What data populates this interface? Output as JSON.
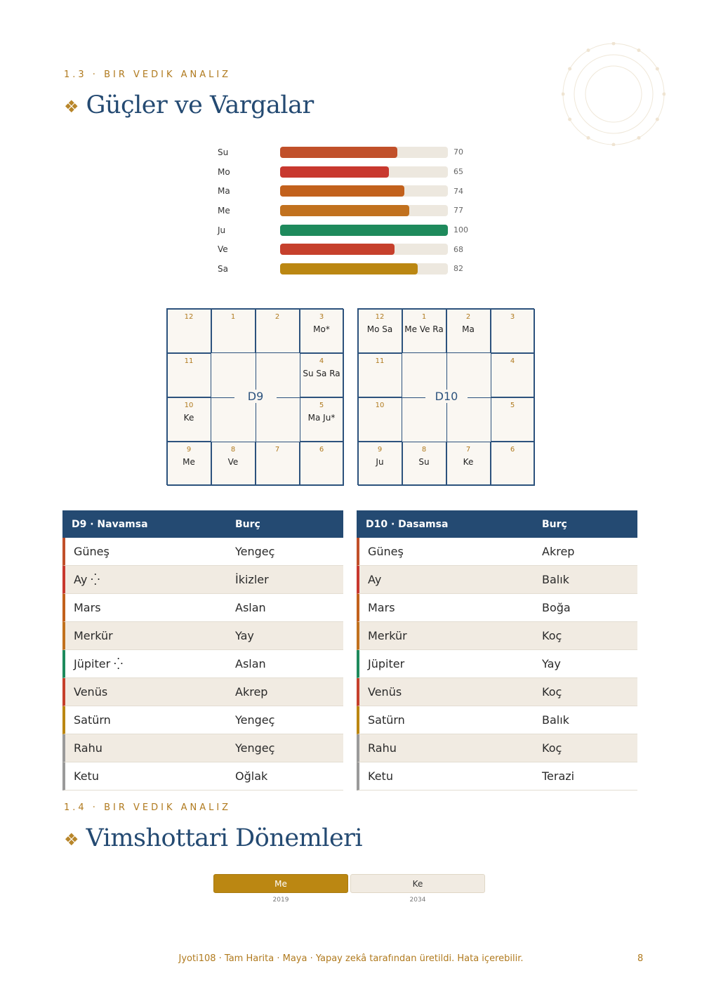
{
  "section1": {
    "label": "1.3 · BIR VEDIK ANALIZ",
    "title": "Güçler ve Vargalar"
  },
  "strengths": [
    {
      "planet": "Su",
      "value": 70,
      "color": "#c1502a"
    },
    {
      "planet": "Mo",
      "value": 65,
      "color": "#c8382e"
    },
    {
      "planet": "Ma",
      "value": 74,
      "color": "#c2611c"
    },
    {
      "planet": "Me",
      "value": 77,
      "color": "#c1711e"
    },
    {
      "planet": "Ju",
      "value": 100,
      "color": "#1e8a5c"
    },
    {
      "planet": "Ve",
      "value": 68,
      "color": "#c6402c"
    },
    {
      "planet": "Sa",
      "value": 82,
      "color": "#bb8712"
    }
  ],
  "charts": [
    {
      "name": "D9",
      "houses": {
        "12": "",
        "1": "",
        "2": "",
        "3": "Mo*",
        "11": "",
        "4": "Su Sa Ra",
        "10": "Ke",
        "5": "Ma Ju*",
        "9": "Me",
        "8": "Ve",
        "7": "",
        "6": ""
      }
    },
    {
      "name": "D10",
      "houses": {
        "12": "Mo Sa",
        "1": "Me Ve Ra",
        "2": "Ma",
        "3": "",
        "11": "",
        "4": "",
        "10": "",
        "5": "",
        "9": "Ju",
        "8": "Su",
        "7": "Ke",
        "6": ""
      }
    }
  ],
  "tables": [
    {
      "col1": "D9 · Navamsa",
      "col2": "Burç",
      "rows": [
        {
          "planet": "Güneş",
          "sign": "Yengeç",
          "color": "#c1502a"
        },
        {
          "planet": "Ay ⁛",
          "sign": "İkizler",
          "color": "#c8382e"
        },
        {
          "planet": "Mars",
          "sign": "Aslan",
          "color": "#c2611c"
        },
        {
          "planet": "Merkür",
          "sign": "Yay",
          "color": "#c1711e"
        },
        {
          "planet": "Jüpiter ⁛",
          "sign": "Aslan",
          "color": "#1e8a5c"
        },
        {
          "planet": "Venüs",
          "sign": "Akrep",
          "color": "#c6402c"
        },
        {
          "planet": "Satürn",
          "sign": "Yengeç",
          "color": "#bb8712"
        },
        {
          "planet": "Rahu",
          "sign": "Yengeç",
          "color": "#9a9a9a"
        },
        {
          "planet": "Ketu",
          "sign": "Oğlak",
          "color": "#9a9a9a"
        }
      ]
    },
    {
      "col1": "D10 · Dasamsa",
      "col2": "Burç",
      "rows": [
        {
          "planet": "Güneş",
          "sign": "Akrep",
          "color": "#c1502a"
        },
        {
          "planet": "Ay",
          "sign": "Balık",
          "color": "#c8382e"
        },
        {
          "planet": "Mars",
          "sign": "Boğa",
          "color": "#c2611c"
        },
        {
          "planet": "Merkür",
          "sign": "Koç",
          "color": "#c1711e"
        },
        {
          "planet": "Jüpiter",
          "sign": "Yay",
          "color": "#1e8a5c"
        },
        {
          "planet": "Venüs",
          "sign": "Koç",
          "color": "#c6402c"
        },
        {
          "planet": "Satürn",
          "sign": "Balık",
          "color": "#bb8712"
        },
        {
          "planet": "Rahu",
          "sign": "Koç",
          "color": "#9a9a9a"
        },
        {
          "planet": "Ketu",
          "sign": "Terazi",
          "color": "#9a9a9a"
        }
      ]
    }
  ],
  "section2": {
    "label": "1.4 · BIR VEDIK ANALIZ",
    "title": "Vimshottari Dönemleri"
  },
  "dasha": [
    {
      "lord": "Me",
      "year": "2019",
      "active": true
    },
    {
      "lord": "Ke",
      "year": "2034",
      "active": false
    }
  ],
  "footer": {
    "text": "Jyoti108 · Tam Harita · Maya · Yapay zekâ tarafından üretildi. Hata içerebilir.",
    "page": "8"
  }
}
